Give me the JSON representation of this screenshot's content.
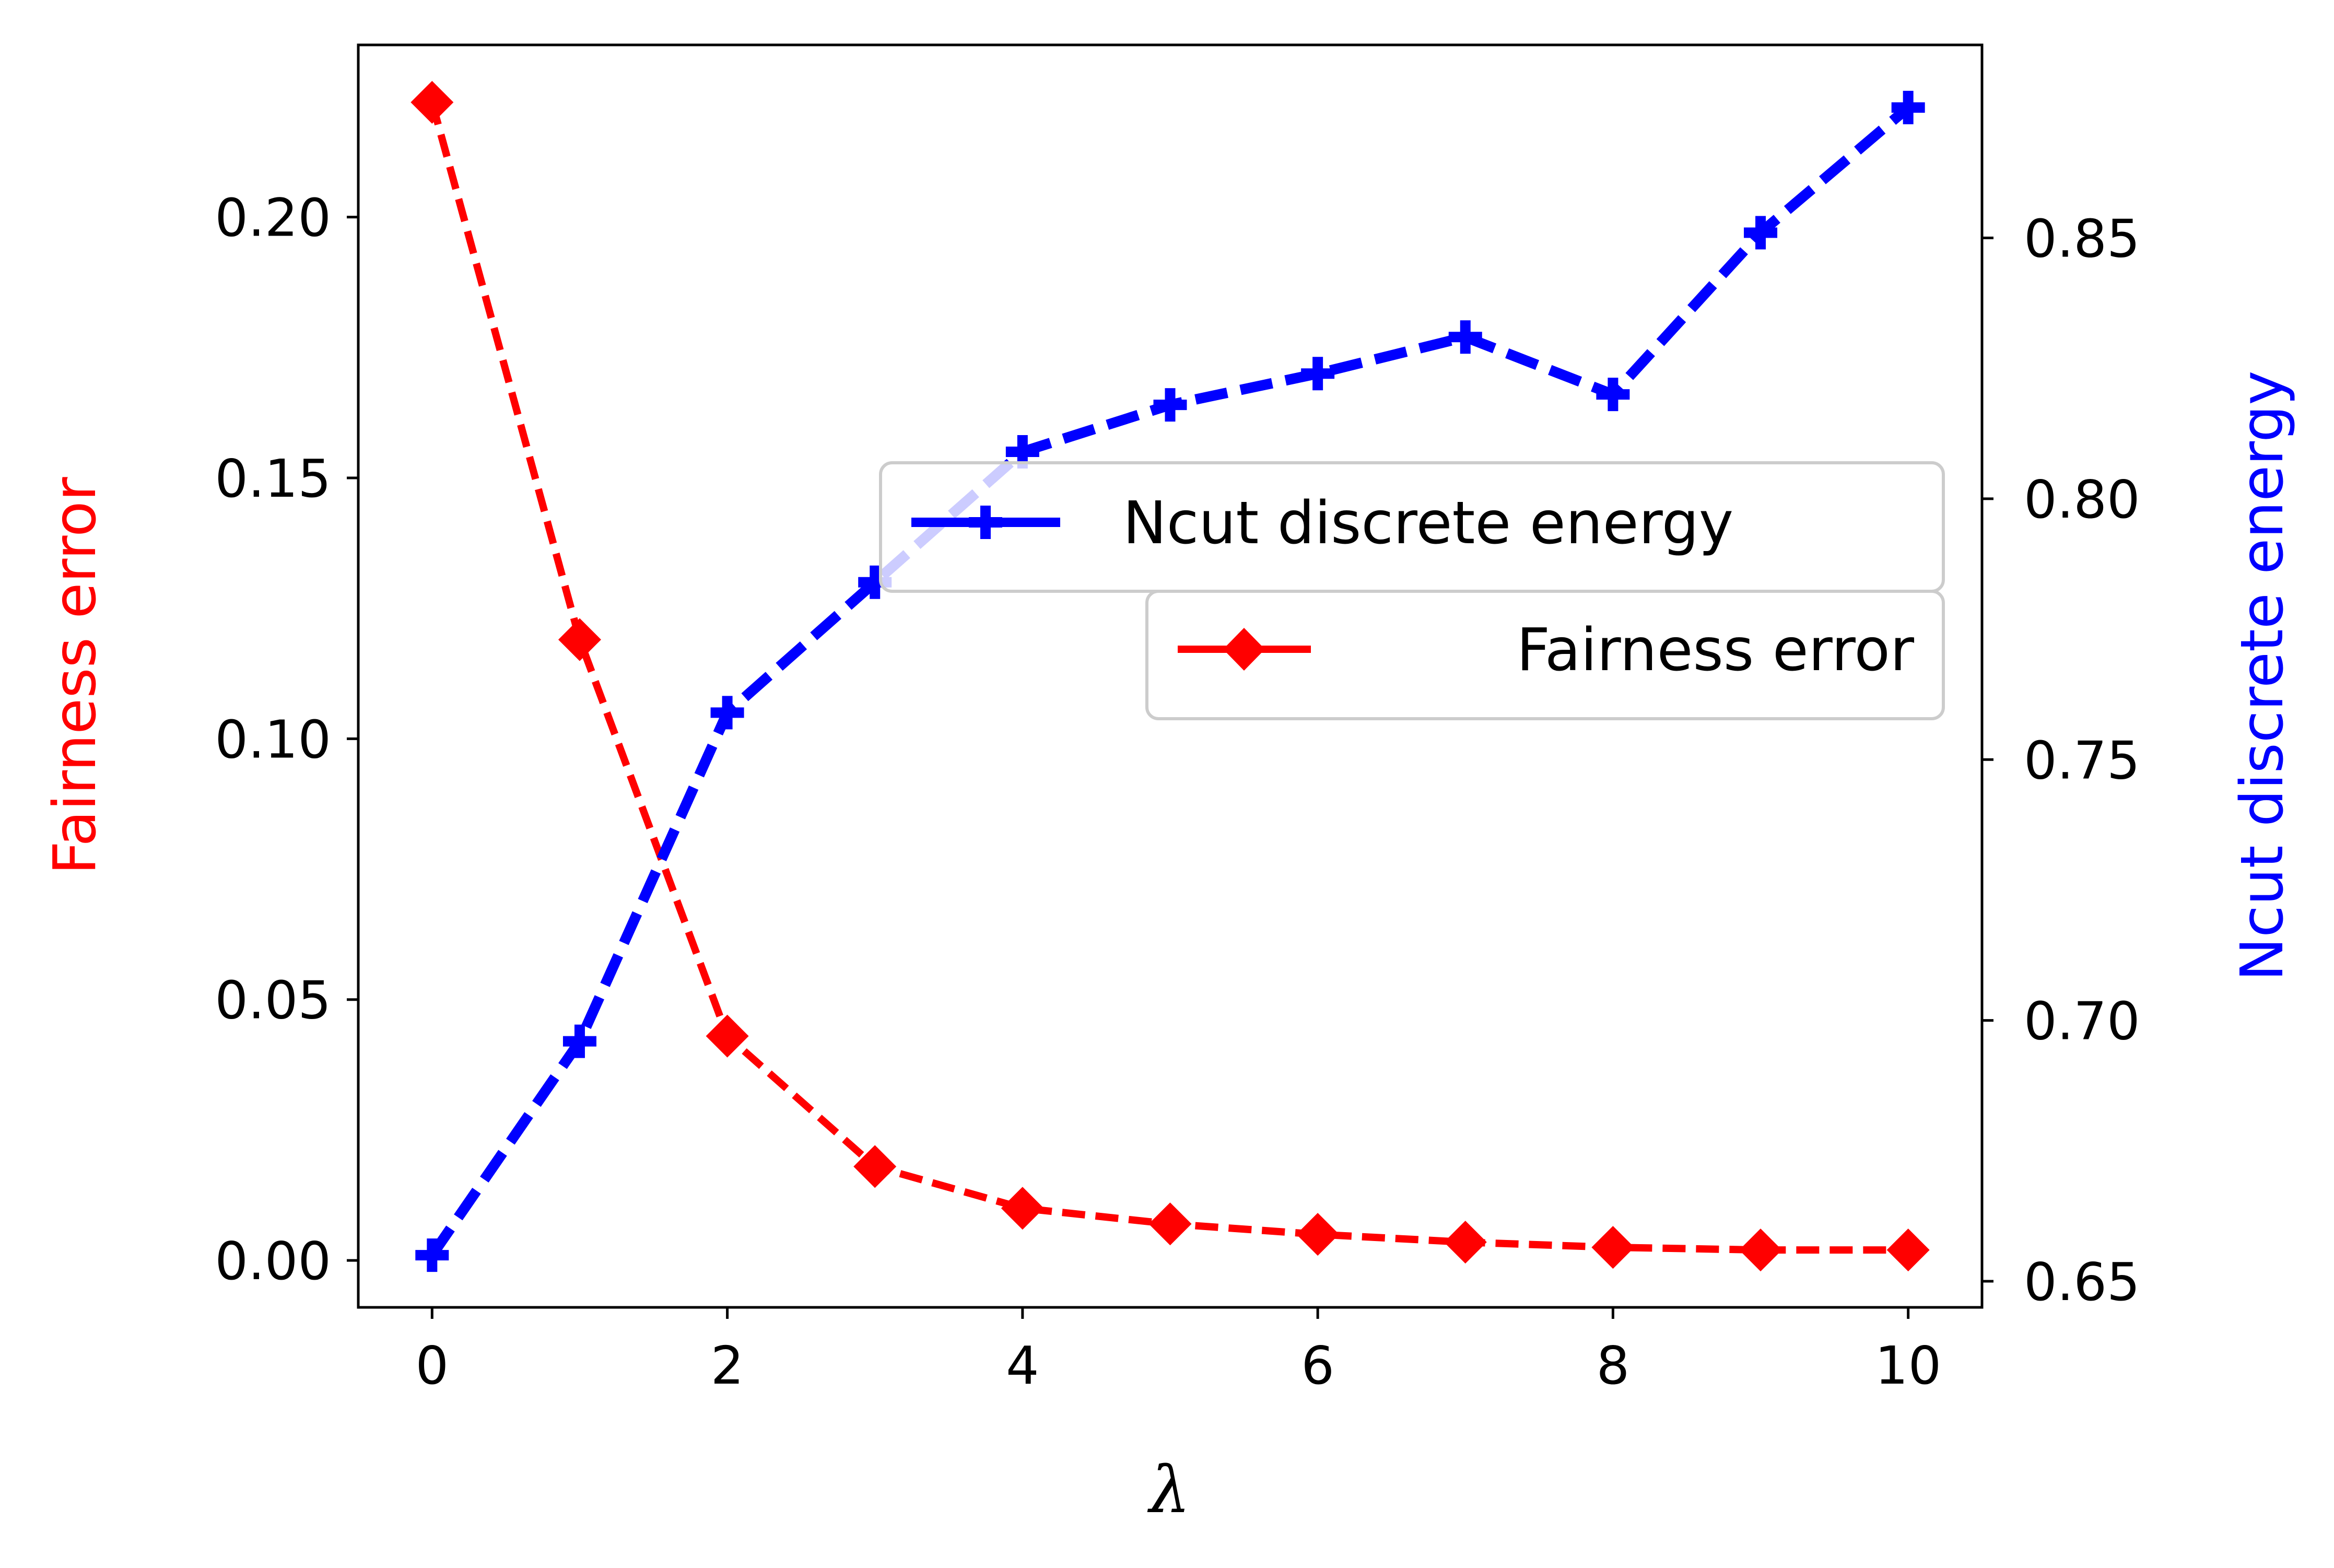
{
  "chart_data": {
    "type": "line",
    "xlabel": "λ",
    "ylabel_left": "Fairness error",
    "ylabel_right": "Ncut discrete energy",
    "xlim": [
      -0.5,
      10.5
    ],
    "ylim_left": [
      -0.009,
      0.233
    ],
    "ylim_right": [
      0.645,
      0.887
    ],
    "x_ticks": [
      0,
      2,
      4,
      6,
      8,
      10
    ],
    "y_ticks_left": [
      0.0,
      0.05,
      0.1,
      0.15,
      0.2
    ],
    "y_ticks_right": [
      0.65,
      0.7,
      0.75,
      0.8,
      0.85
    ],
    "x": [
      0,
      1,
      2,
      3,
      4,
      5,
      6,
      7,
      8,
      9,
      10
    ],
    "series": [
      {
        "name": "Fairness error",
        "axis": "left",
        "color": "#ff0000",
        "marker": "diamond",
        "line_style": "dashed",
        "values": [
          0.222,
          0.119,
          0.043,
          0.018,
          0.01,
          0.007,
          0.005,
          0.0035,
          0.0025,
          0.002,
          0.002
        ]
      },
      {
        "name": "Ncut discrete energy",
        "axis": "right",
        "color": "#0000ff",
        "marker": "plus",
        "line_style": "dashed",
        "values": [
          0.655,
          0.696,
          0.759,
          0.784,
          0.809,
          0.818,
          0.824,
          0.831,
          0.82,
          0.851,
          0.875
        ]
      }
    ],
    "legend": {
      "placement": "right-middle",
      "entries": [
        "Ncut discrete energy",
        "Fairness error"
      ]
    },
    "grid": false
  }
}
